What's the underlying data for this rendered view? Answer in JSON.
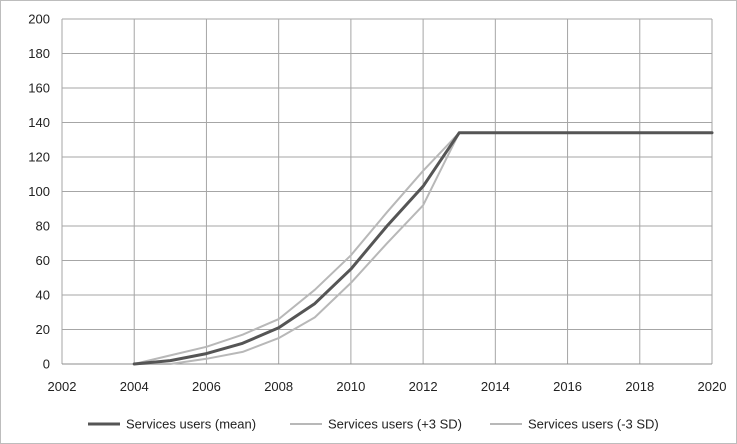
{
  "chart_data": {
    "type": "line",
    "title": "",
    "xlabel": "",
    "ylabel": "",
    "xlim": [
      2002,
      2020
    ],
    "ylim": [
      0,
      200
    ],
    "x_ticks": [
      2002,
      2004,
      2006,
      2008,
      2010,
      2012,
      2014,
      2016,
      2018,
      2020
    ],
    "y_ticks": [
      0,
      20,
      40,
      60,
      80,
      100,
      120,
      140,
      160,
      180,
      200
    ],
    "grid": true,
    "legend_position": "bottom",
    "x_tick_labels": [
      "2002",
      "2004",
      "2006",
      "2008",
      "2010",
      "2012",
      "2014",
      "2016",
      "2018",
      "2020"
    ],
    "y_tick_labels": [
      "0",
      "20",
      "40",
      "60",
      "80",
      "100",
      "120",
      "140",
      "160",
      "180",
      "200"
    ],
    "series": [
      {
        "name": "Services users (mean)",
        "color": "#555555",
        "x": [
          2004,
          2005,
          2006,
          2007,
          2008,
          2009,
          2010,
          2011,
          2012,
          2013,
          2014,
          2015,
          2016,
          2017,
          2018,
          2019,
          2020
        ],
        "y": [
          0,
          2,
          6,
          12,
          21,
          35,
          55,
          80,
          103,
          134,
          134,
          134,
          134,
          134,
          134,
          134,
          134
        ]
      },
      {
        "name": "Services users (+3 SD)",
        "color": "#b8b8b8",
        "x": [
          2004,
          2005,
          2006,
          2007,
          2008,
          2009,
          2010,
          2011,
          2012,
          2013
        ],
        "y": [
          0,
          5,
          10,
          17,
          26,
          43,
          63,
          88,
          112,
          134
        ]
      },
      {
        "name": "Services users (-3 SD)",
        "color": "#b8b8b8",
        "x": [
          2004,
          2005,
          2006,
          2007,
          2008,
          2009,
          2010,
          2011,
          2012,
          2013
        ],
        "y": [
          0,
          0,
          3,
          7,
          15,
          27,
          47,
          70,
          92,
          134
        ]
      }
    ]
  }
}
